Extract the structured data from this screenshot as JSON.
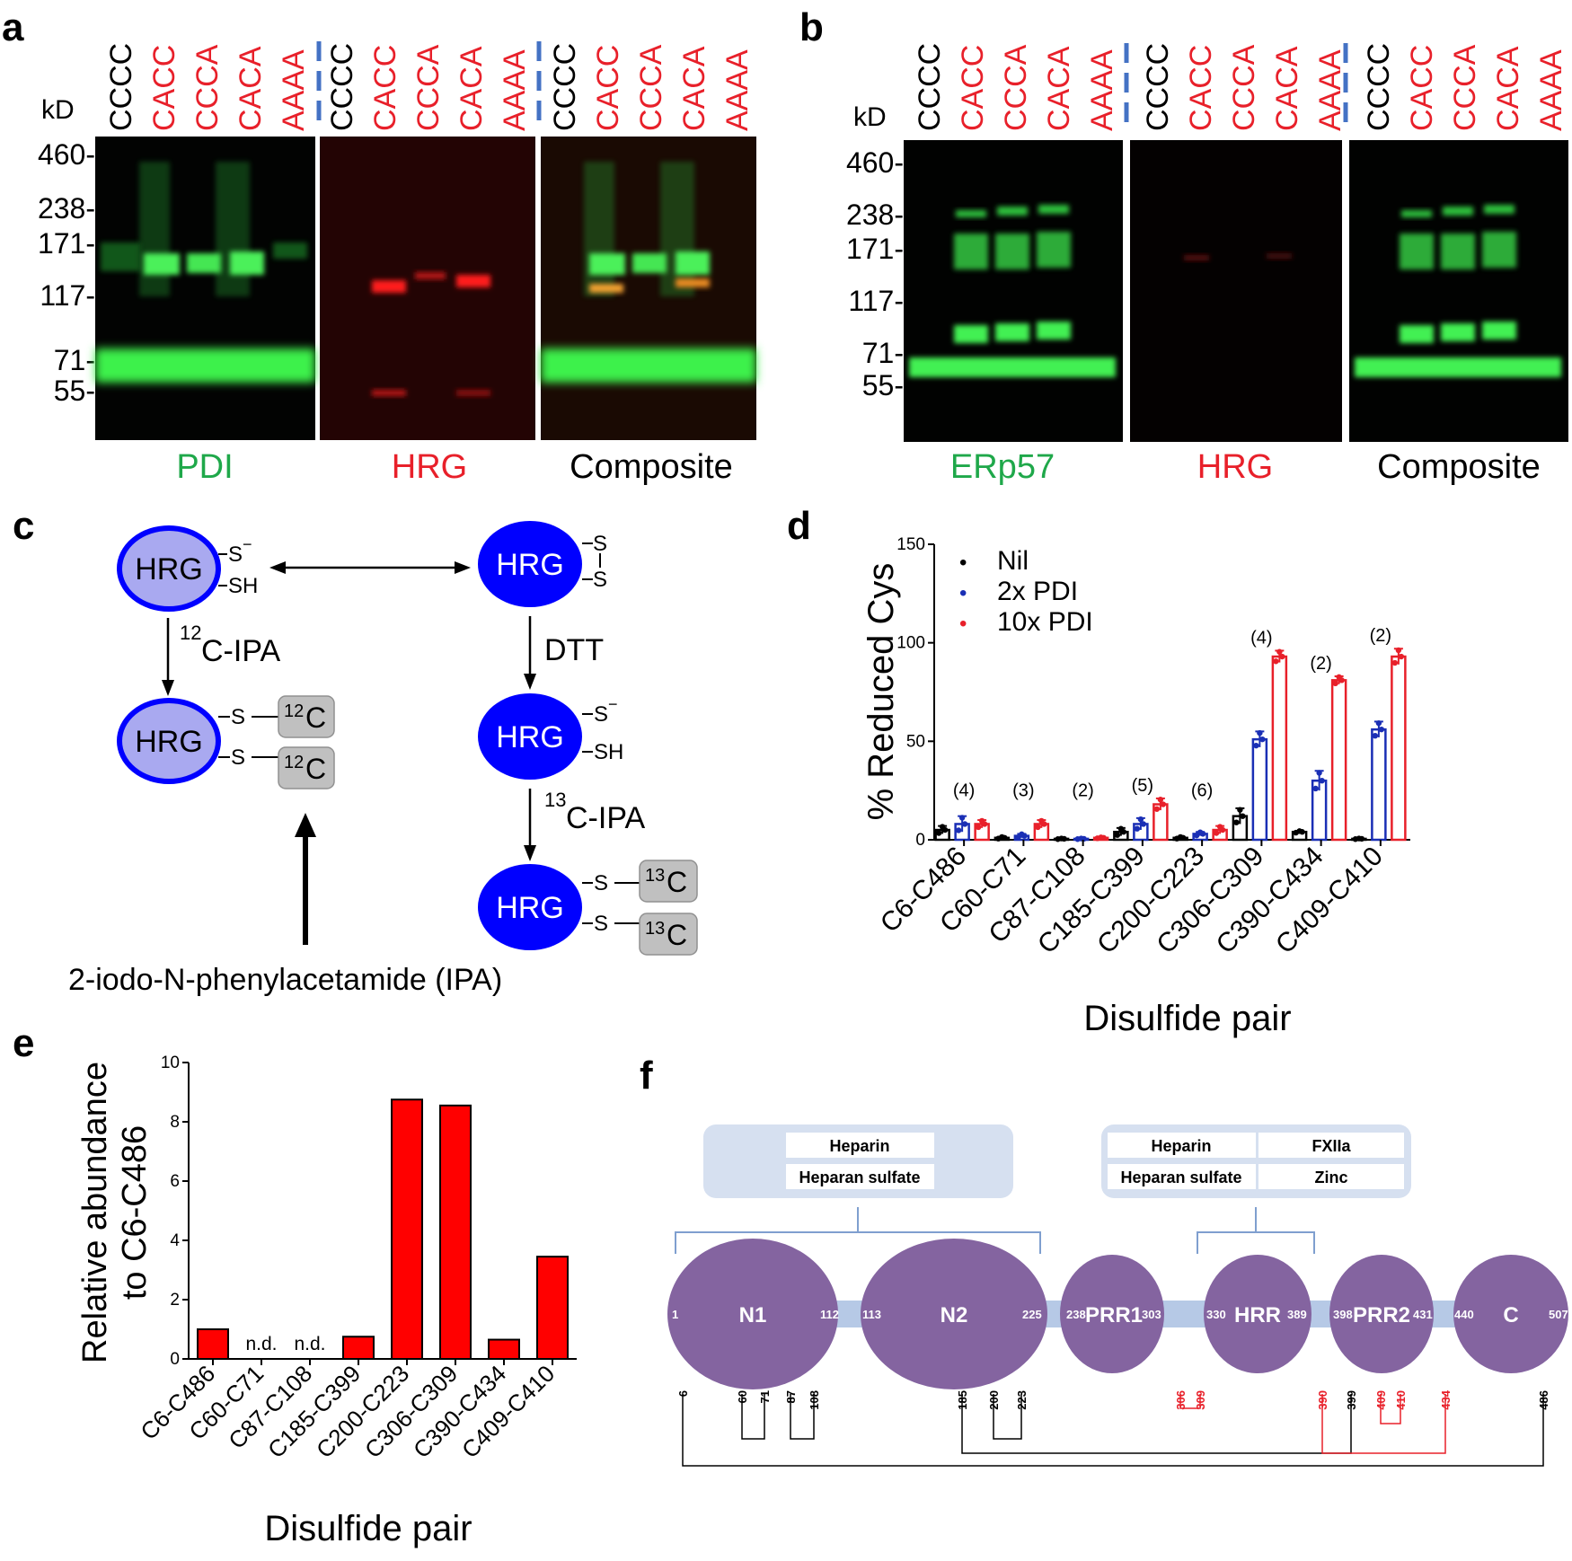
{
  "panels": {
    "a": {
      "letter": "a",
      "kd_label": "kD",
      "lanes": [
        "CCCC",
        "CACC",
        "CCCA",
        "CACA",
        "AAAA"
      ],
      "mw_markers": [
        "460-",
        "238-",
        "171-",
        "117-",
        "71-",
        "55-"
      ],
      "blot_labels": [
        "PDI",
        "HRG",
        "Composite"
      ]
    },
    "b": {
      "letter": "b",
      "kd_label": "kD",
      "lanes": [
        "CCCC",
        "CACC",
        "CCCA",
        "CACA",
        "AAAA"
      ],
      "mw_markers": [
        "460-",
        "238-",
        "171-",
        "117-",
        "71-",
        "55-"
      ],
      "blot_labels": [
        "ERp57",
        "HRG",
        "Composite"
      ]
    },
    "c": {
      "letter": "c",
      "hrg": "HRG",
      "s_minus": "S",
      "minus": "−",
      "sh": "SH",
      "s": "S",
      "c12_reagent_sup": "12",
      "c12_reagent": "C-IPA",
      "c13_reagent_sup": "13",
      "c13_reagent": "C-IPA",
      "dtt": "DTT",
      "c12_tag_sup": "12",
      "c13_tag_sup": "13",
      "tag_letter": "C",
      "reagent_name": "2-iodo-N-phenylacetamide (IPA)"
    },
    "d": {
      "letter": "d"
    },
    "e": {
      "letter": "e"
    },
    "f": {
      "letter": "f",
      "box1": [
        "Heparin",
        "Heparan sulfate"
      ],
      "box2": [
        "Heparin",
        "FXIIa",
        "Heparan sulfate",
        "Zinc"
      ],
      "domains": [
        "N1",
        "N2",
        "PRR1",
        "HRR",
        "PRR2",
        "C"
      ],
      "boundaries": [
        "1",
        "112",
        "113",
        "225",
        "238",
        "303",
        "330",
        "389",
        "398",
        "431",
        "440",
        "507"
      ],
      "cysteines": [
        "6",
        "60",
        "71",
        "87",
        "108",
        "185",
        "200",
        "223",
        "306",
        "309",
        "390",
        "399",
        "409",
        "410",
        "434",
        "486"
      ]
    }
  },
  "colors": {
    "green": "#1fa84a",
    "red": "#e8202a",
    "blue_divider": "#4472c4",
    "hrg_light": "#a9a9f0",
    "hrg_dark": "#0000ff",
    "domain_purple": "#8464a0",
    "linker": "#b6c9e6",
    "box_fill": "#d6e0f0",
    "nil": "#000000",
    "pdi2": "#1a2fb5",
    "pdi10": "#e8202a"
  },
  "chart_data": [
    {
      "id": "d",
      "type": "bar",
      "ylabel": "% Reduced Cys",
      "xlabel": "Disulfide pair",
      "ylim": [
        0,
        150
      ],
      "yticks": [
        "0",
        "50",
        "100",
        "150"
      ],
      "categories": [
        "C6-C486",
        "C60-C71",
        "C87-C108",
        "C185-C399",
        "C200-C223",
        "C306-C309",
        "C390-C434",
        "C409-C410"
      ],
      "n_labels": [
        "(4)",
        "(3)",
        "(2)",
        "(5)",
        "(6)",
        "(4)",
        "(2)",
        "(2)"
      ],
      "legend_bullet": "•",
      "series": [
        {
          "name": "Nil",
          "values": [
            5,
            1,
            0.5,
            4,
            1,
            12,
            4,
            0.5
          ],
          "errors": [
            2,
            0.5,
            0.2,
            2,
            0.5,
            4,
            0.5,
            0.2
          ]
        },
        {
          "name": "2x PDI",
          "values": [
            8,
            2,
            0.5,
            8,
            3,
            51,
            30,
            56
          ],
          "errors": [
            4,
            1,
            0.2,
            3,
            1,
            4,
            5,
            4
          ]
        },
        {
          "name": "10x PDI",
          "values": [
            8,
            8,
            1,
            18,
            5,
            93,
            81,
            93
          ],
          "errors": [
            2,
            2,
            0.3,
            3,
            2,
            3,
            2,
            4
          ]
        }
      ],
      "legend": "top-left",
      "grid": false
    },
    {
      "id": "e",
      "type": "bar",
      "ylabel_lines": [
        "Relative abundance",
        "to C6-C486"
      ],
      "xlabel": "Disulfide pair",
      "ylim": [
        0,
        10
      ],
      "yticks": [
        "0",
        "2",
        "4",
        "6",
        "8",
        "10"
      ],
      "categories": [
        "C6-C486",
        "C60-C71",
        "C87-C108",
        "C185-C399",
        "C200-C223",
        "C306-C309",
        "C390-C434",
        "C409-C410"
      ],
      "values": [
        1.0,
        null,
        null,
        0.75,
        8.75,
        8.55,
        0.65,
        3.45
      ],
      "nd_label": "n.d.",
      "grid": false
    }
  ]
}
